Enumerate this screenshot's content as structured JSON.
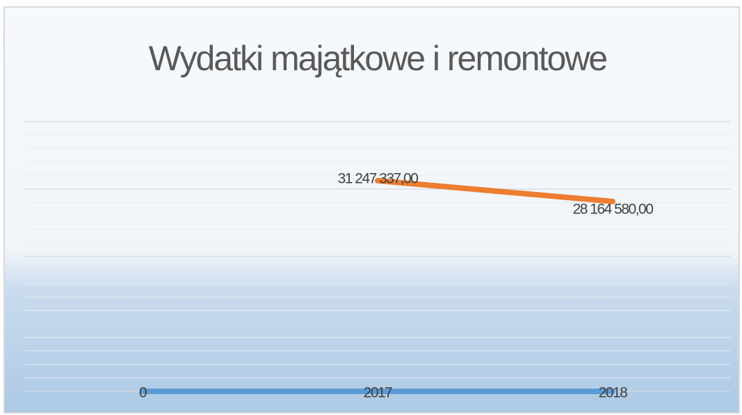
{
  "chart_data": {
    "type": "line",
    "title": "Wydatki majątkowe i remontowe",
    "categories": [
      null,
      null,
      null
    ],
    "series": [
      {
        "color": "#5b9bd5",
        "values": [
          0,
          2017,
          2018
        ]
      },
      {
        "color": "#ed7d31",
        "values": [
          null,
          31247337,
          28164580
        ],
        "value_labels": [
          null,
          "31 247 337,00",
          "28 164 580,00"
        ]
      }
    ],
    "ylim": [
      0,
      40000000
    ],
    "yticks": [
      0,
      10000000,
      20000000,
      30000000,
      40000000
    ],
    "minor_yticks": [
      2000000,
      4000000,
      6000000,
      8000000,
      12000000,
      14000000,
      16000000,
      18000000,
      22000000,
      24000000,
      26000000,
      28000000,
      32000000,
      34000000,
      36000000,
      38000000
    ],
    "grid": true,
    "tick_labels": false
  }
}
